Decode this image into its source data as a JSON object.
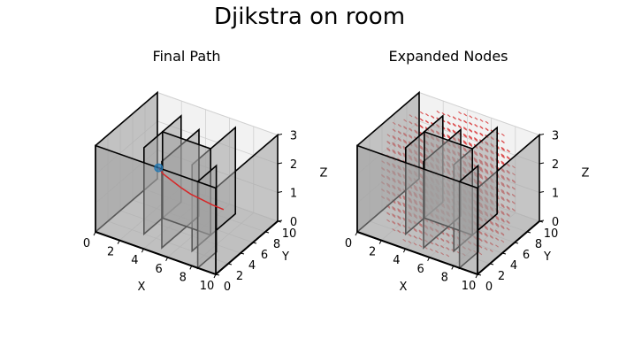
{
  "figure": {
    "title": "Djikstra on room"
  },
  "chart_data": [
    {
      "type": "3d-scatter",
      "title": "Final Path",
      "xlabel": "X",
      "ylabel": "Y",
      "zlabel": "Z",
      "xlim": [
        0,
        10
      ],
      "ylim": [
        0,
        10
      ],
      "zlim": [
        0,
        3
      ],
      "xticks": [
        "0",
        "2",
        "4",
        "6",
        "8",
        "10"
      ],
      "yticks": [
        "0",
        "2",
        "4",
        "6",
        "8",
        "10"
      ],
      "zticks": [
        "0",
        "1",
        "2",
        "3"
      ],
      "start": {
        "x": 0.3,
        "y": 9.6,
        "z": 0.5
      },
      "path": [
        {
          "x": 0.3,
          "y": 9.6,
          "z": 0.5
        },
        {
          "x": 1.0,
          "y": 9.0,
          "z": 0.5
        },
        {
          "x": 2.0,
          "y": 8.5,
          "z": 0.5
        },
        {
          "x": 3.0,
          "y": 8.0,
          "z": 0.5
        },
        {
          "x": 4.0,
          "y": 7.6,
          "z": 0.5
        },
        {
          "x": 5.0,
          "y": 7.4,
          "z": 0.5
        },
        {
          "x": 6.0,
          "y": 7.2,
          "z": 0.5
        },
        {
          "x": 7.0,
          "y": 7.1,
          "z": 0.5
        }
      ],
      "path_color": "#d62728",
      "start_color": "#1f77b4"
    },
    {
      "type": "3d-scatter",
      "title": "Expanded Nodes",
      "xlabel": "X",
      "ylabel": "Y",
      "zlabel": "Z",
      "xlim": [
        0,
        10
      ],
      "ylim": [
        0,
        10
      ],
      "zlim": [
        0,
        3
      ],
      "xticks": [
        "0",
        "2",
        "4",
        "6",
        "8",
        "10"
      ],
      "yticks": [
        "0",
        "2",
        "4",
        "6",
        "8",
        "10"
      ],
      "zticks": [
        "0",
        "1",
        "2",
        "3"
      ],
      "expanded_region": {
        "center": [
          5,
          5,
          1.5
        ],
        "radius_xy": 5,
        "height": 3
      },
      "node_color": "#d62728"
    }
  ],
  "room": {
    "walls": [
      {
        "x0": 0,
        "y0": 0,
        "x1": 10,
        "y1": 0,
        "z0": 0,
        "z1": 3
      },
      {
        "x0": 10,
        "y0": 0,
        "x1": 10,
        "y1": 10,
        "z0": 0,
        "z1": 3
      },
      {
        "x0": 0,
        "y0": 0,
        "x1": 0,
        "y1": 10,
        "z0": 0,
        "z1": 3
      },
      {
        "x0": 3,
        "y0": 2,
        "x1": 3,
        "y1": 8,
        "z0": 0,
        "z1": 3
      },
      {
        "x0": 5,
        "y0": 1,
        "x1": 5,
        "y1": 7,
        "z0": 0,
        "z1": 3
      },
      {
        "x0": 7,
        "y0": 2,
        "x1": 7,
        "y1": 9,
        "z0": 0,
        "z1": 3
      },
      {
        "x0": 3,
        "y0": 5,
        "x1": 7,
        "y1": 5,
        "z0": 0,
        "z1": 3
      },
      {
        "x0": 8.5,
        "y0": 0,
        "x1": 8.5,
        "y1": 3,
        "z0": 0,
        "z1": 3
      }
    ],
    "wall_color": "#a0a0a0",
    "edge_color": "#000000"
  }
}
